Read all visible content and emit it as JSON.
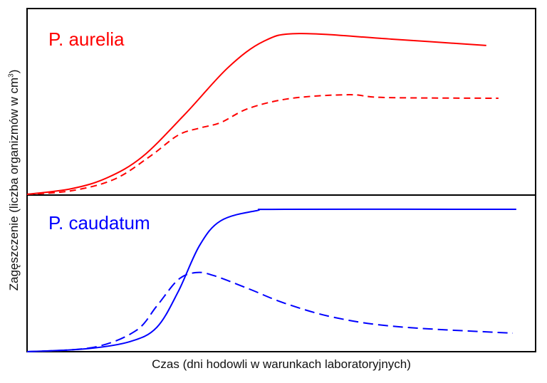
{
  "chart_data": [
    {
      "type": "line",
      "title": "P. aurelia",
      "title_color": "#ff0000",
      "xlim": [
        0,
        100
      ],
      "ylim": [
        0,
        100
      ],
      "grid": false,
      "series": [
        {
          "style": "solid",
          "color": "#ff0000",
          "x": [
            0,
            8.7,
            15.7,
            22.7,
            31.1,
            39.5,
            46.5,
            53.5,
            71.7,
            90.3
          ],
          "y": [
            0.4,
            3.4,
            9.2,
            20.6,
            43.5,
            68.3,
            82.4,
            86.6,
            83.6,
            80.2
          ]
        },
        {
          "style": "dashed",
          "color": "#ff0000",
          "x": [
            0,
            8.7,
            17.1,
            24.1,
            29.7,
            33.9,
            38.1,
            43.7,
            52.1,
            63.3,
            70.3,
            92.7
          ],
          "y": [
            0.4,
            2.3,
            8.4,
            20.6,
            32.1,
            35.9,
            38.9,
            46.6,
            51.9,
            53.8,
            52.3,
            51.9
          ]
        }
      ]
    },
    {
      "type": "line",
      "title": "P. caudatum",
      "title_color": "#0000ff",
      "xlim": [
        0,
        100
      ],
      "ylim": [
        0,
        100
      ],
      "grid": false,
      "series": [
        {
          "style": "solid",
          "color": "#0000ff",
          "x": [
            0,
            11.5,
            20.2,
            25.5,
            29.7,
            33.9,
            38.1,
            45.1,
            50.7,
            96.2
          ],
          "y": [
            0,
            1.8,
            6.4,
            15.5,
            38.2,
            67.7,
            83.6,
            90,
            90.9,
            90.9
          ]
        },
        {
          "style": "dashed",
          "color": "#0000ff",
          "x": [
            0,
            12.9,
            21.3,
            25.5,
            29.7,
            33.2,
            36.7,
            43.7,
            50.7,
            60.5,
            73.1,
            95.5
          ],
          "y": [
            0,
            2.7,
            13.2,
            29.1,
            45.9,
            50.5,
            48.6,
            40,
            30.9,
            21.8,
            15.9,
            11.8
          ]
        }
      ]
    }
  ],
  "axes": {
    "xlabel": "Czas (dni hodowli w warunkach laboratoryjnych)",
    "ylabel": "Zagęszczenie (liczba organizmów w cm",
    "ylabel_sup": "3",
    "ylabel_end": ")"
  }
}
